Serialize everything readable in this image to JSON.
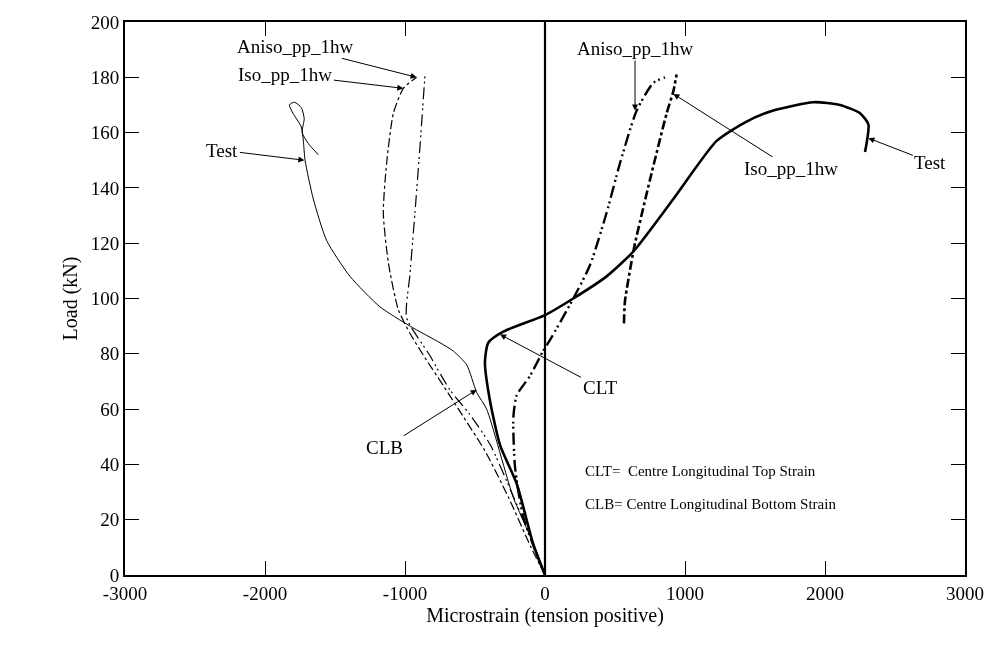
{
  "chart_data": {
    "type": "line",
    "xlabel": "Microstrain (tension positive)",
    "ylabel": "Load (kN)",
    "xlim": [
      -3000,
      3000
    ],
    "xticks": [
      -3000,
      -2000,
      -1000,
      0,
      1000,
      2000,
      3000
    ],
    "ylim": [
      0,
      200
    ],
    "yticks": [
      0,
      20,
      40,
      60,
      80,
      100,
      120,
      140,
      160,
      180,
      200
    ],
    "marker": "none",
    "ref_lines": [
      {
        "axis": "x",
        "value": 0,
        "color": "#000000",
        "line_style": "solid"
      }
    ],
    "series": [
      {
        "color": "#000000",
        "line_style": "solid",
        "x": [
          0,
          -71,
          -226,
          -417,
          -488,
          -559,
          -655,
          -750,
          -964,
          -1179,
          -1393,
          -1560,
          -1655,
          -1714,
          -1726,
          -1740,
          -1800,
          -1826,
          -1790,
          -1740,
          -1720,
          -1735,
          -1690,
          -1619
        ],
        "values": [
          0,
          10,
          28,
          60,
          66,
          76,
          81,
          84,
          90,
          97,
          108,
          121,
          136,
          150,
          157,
          162,
          167,
          170,
          171,
          169,
          165,
          160,
          156,
          152
        ]
      },
      {
        "color": "#000000",
        "line_style": "dashed",
        "x": [
          0,
          -100,
          -260,
          -430,
          -580,
          -720,
          -850,
          -960,
          -1048,
          -1119,
          -1155,
          -1131,
          -1083,
          -1012,
          -917
        ],
        "values": [
          0,
          10,
          28,
          45,
          57,
          68,
          78,
          87,
          96,
          113,
          131,
          149,
          167,
          176,
          180
        ]
      },
      {
        "color": "#000000",
        "line_style": "dotted",
        "x": [
          0,
          -90,
          -240,
          -390,
          -536,
          -680,
          -830,
          -988,
          -964,
          -929,
          -893,
          -857
        ],
        "values": [
          0,
          12,
          30,
          47,
          58,
          67,
          80,
          93,
          109,
          131,
          155,
          181
        ]
      },
      {
        "color": "#000000",
        "line_style": "solid",
        "x": [
          0,
          -83,
          -202,
          -321,
          -393,
          -429,
          -405,
          -298,
          0,
          202,
          440,
          631,
          917,
          1226,
          1440,
          1631,
          1917,
          2107,
          2250,
          2310,
          2286
        ],
        "values": [
          0,
          11,
          33,
          47,
          63,
          77,
          84,
          88,
          94,
          100,
          108,
          117,
          136,
          157,
          164,
          168,
          171,
          170,
          167,
          163,
          153
        ]
      },
      {
        "color": "#000000",
        "line_style": "dotted",
        "x": [
          0,
          -155,
          -214,
          -226,
          -202,
          -107,
          -14,
          36,
          202,
          321,
          440,
          536,
          655,
          774,
          857
        ],
        "values": [
          0,
          21,
          39,
          57,
          65,
          72,
          81,
          85,
          100,
          112,
          131,
          149,
          168,
          178,
          180
        ]
      },
      {
        "color": "#000000",
        "line_style": "dashed",
        "x": [
          564,
          571,
          631,
          643,
          750,
          869,
          917,
          940
        ],
        "values": [
          91,
          99,
          117,
          120,
          143,
          167,
          175,
          181
        ]
      }
    ],
    "annotations": [
      {
        "text": "Aniso_pp_1hw",
        "x": -917,
        "y": 180
      },
      {
        "text": "Iso_pp_1hw",
        "x": -1012,
        "y": 176
      },
      {
        "text": "Test",
        "x": -1719,
        "y": 150
      },
      {
        "text": "Aniso_pp_1hw",
        "x": 643,
        "y": 168
      },
      {
        "text": "Iso_pp_1hw",
        "x": 917,
        "y": 174
      },
      {
        "text": "Test",
        "x": 2310,
        "y": 158
      },
      {
        "text": "CLB",
        "x": -488,
        "y": 67
      },
      {
        "text": "CLT",
        "x": -321,
        "y": 87
      },
      "CLT=  Centre Longitudinal Top Strain",
      "CLB= Centre Longitudinal Bottom Strain"
    ]
  }
}
